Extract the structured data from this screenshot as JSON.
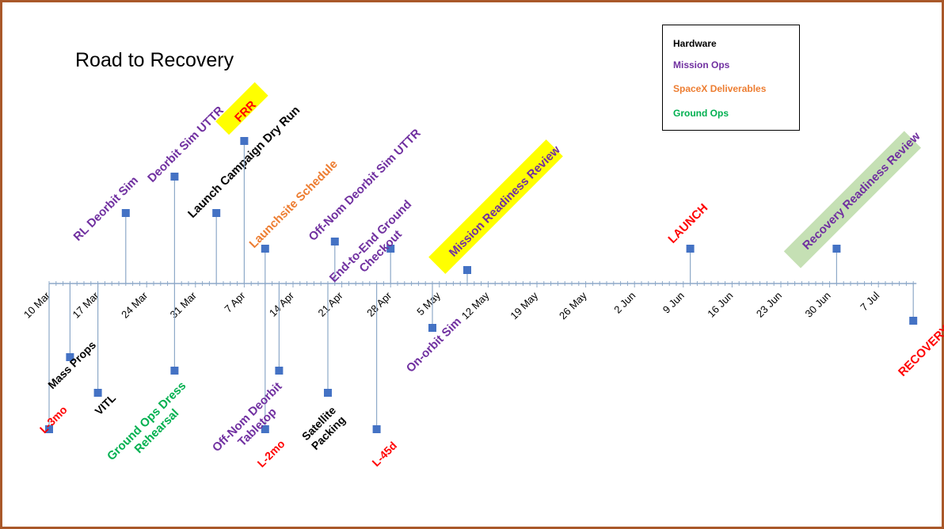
{
  "title": "Road to Recovery",
  "colors": {
    "Hardware": "#000000",
    "Mission Ops": "#7030a0",
    "SpaceX Deliverables": "#ed7d31",
    "Ground Ops": "#00b050",
    "milestone": "#ff0000",
    "highlight": "#ffff00",
    "highlight_green": "#c5e0b4",
    "axis": "#8ea9c8",
    "marker": "#4472c4",
    "frame": "#a9582a"
  },
  "legend": [
    {
      "label": "Hardware",
      "category": "Hardware"
    },
    {
      "label": "Mission Ops",
      "category": "Mission Ops"
    },
    {
      "label": "SpaceX Deliverables",
      "category": "SpaceX Deliverables"
    },
    {
      "label": "Ground Ops",
      "category": "Ground Ops"
    }
  ],
  "axis": {
    "start": "2020-03-10",
    "end": "2020-07-12",
    "ticks": [
      "10 Mar",
      "17 Mar",
      "24 Mar",
      "31 Mar",
      "7 Apr",
      "14 Apr",
      "21 Apr",
      "28 Apr",
      "5 May",
      "12 May",
      "19 May",
      "26 May",
      "2 Jun",
      "9 Jun",
      "16 Jun",
      "23 Jun",
      "30 Jun",
      "7 Jul"
    ]
  },
  "events": [
    {
      "name": "L-3mo",
      "date": "2020-03-10",
      "category": "milestone"
    },
    {
      "name": "Mass Props",
      "date": "2020-03-13",
      "category": "Hardware"
    },
    {
      "name": "VITL",
      "date": "2020-03-17",
      "category": "Hardware"
    },
    {
      "name": "RL Deorbit Sim",
      "date": "2020-03-21",
      "category": "Mission Ops"
    },
    {
      "name": "Deorbit Sim UTTR",
      "date": "2020-03-28",
      "category": "Mission Ops"
    },
    {
      "name": "Ground Ops Dress Rehearsal",
      "date": "2020-03-28",
      "category": "Ground Ops"
    },
    {
      "name": "Launch Campaign Dry Run",
      "date": "2020-04-03",
      "category": "Hardware"
    },
    {
      "name": "FRR",
      "date": "2020-04-07",
      "category": "milestone",
      "highlight": true
    },
    {
      "name": "Launchsite Schedule",
      "date": "2020-04-10",
      "category": "SpaceX Deliverables"
    },
    {
      "name": "L-2mo",
      "date": "2020-04-10",
      "category": "milestone"
    },
    {
      "name": "Off-Nom Deorbit Tabletop",
      "date": "2020-04-12",
      "category": "Mission Ops"
    },
    {
      "name": "Off-Nom Deorbit Sim UTTR",
      "date": "2020-04-20",
      "category": "Mission Ops"
    },
    {
      "name": "Satellite Packing",
      "date": "2020-04-19",
      "category": "Hardware"
    },
    {
      "name": "L-45d",
      "date": "2020-04-26",
      "category": "milestone"
    },
    {
      "name": "End-to-End Ground Checkout",
      "date": "2020-04-28",
      "category": "Mission Ops"
    },
    {
      "name": "On-orbit Sim",
      "date": "2020-05-04",
      "category": "Mission Ops"
    },
    {
      "name": "Mission Readiness Review",
      "date": "2020-05-09",
      "category": "Mission Ops",
      "highlight": true
    },
    {
      "name": "LAUNCH",
      "date": "2020-06-10",
      "category": "milestone"
    },
    {
      "name": "Recovery Readiness Review",
      "date": "2020-07-01",
      "category": "Mission Ops",
      "highlight": true
    },
    {
      "name": "RECOVERY",
      "date": "2020-07-12",
      "category": "milestone"
    }
  ]
}
